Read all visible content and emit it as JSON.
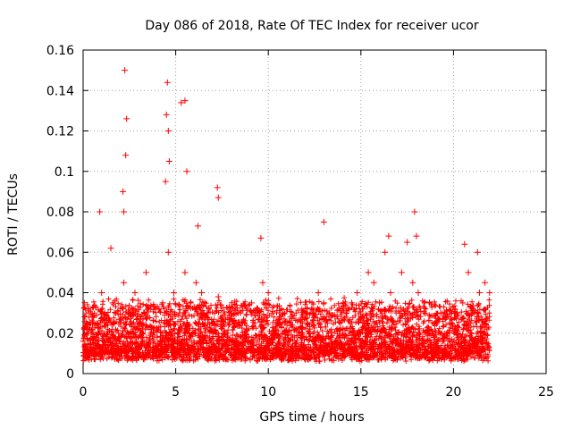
{
  "chart_data": {
    "type": "scatter",
    "title": "Day 086 of 2018, Rate Of TEC Index for receiver ucor",
    "xlabel": "GPS time / hours",
    "ylabel": "ROTI / TECUs",
    "xlim": [
      0,
      25
    ],
    "ylim": [
      0,
      0.16
    ],
    "xticks": [
      "0",
      "5",
      "10",
      "15",
      "20",
      "25"
    ],
    "yticks": [
      "0",
      "0.02",
      "0.04",
      "0.06",
      "0.08",
      "0.1",
      "0.12",
      "0.14",
      "0.16"
    ],
    "grid": true,
    "marker": "+",
    "color": "#ff0000",
    "series": [
      {
        "x": [
          0.0,
          0.2,
          0.5,
          0.8,
          1.0,
          1.3,
          1.6,
          1.9,
          2.2,
          2.5,
          2.8,
          3.1,
          3.4,
          3.7,
          4.0,
          4.3,
          4.6,
          4.9,
          5.2,
          5.5,
          5.8,
          6.1,
          6.4,
          6.7,
          7.0,
          7.3,
          7.6,
          7.9,
          8.2,
          8.5,
          8.8,
          9.1,
          9.4,
          9.7,
          10.0,
          10.3,
          10.6,
          10.9,
          11.2,
          11.5,
          11.8,
          12.1,
          12.4,
          12.7,
          13.0,
          13.3,
          13.6,
          13.9,
          14.2,
          14.5,
          14.8,
          15.1,
          15.4,
          15.7,
          16.0,
          16.3,
          16.6,
          16.9,
          17.2,
          17.5,
          17.8,
          18.1,
          18.4,
          18.7,
          19.0,
          19.3,
          19.6,
          19.9,
          20.2,
          20.5,
          20.8,
          21.1,
          21.4,
          21.7,
          21.95,
          2.25,
          2.35,
          2.3,
          4.55,
          4.5,
          4.6,
          4.65,
          4.45,
          5.3,
          5.5,
          5.6,
          2.2,
          2.15,
          7.25,
          7.3,
          9.6,
          13.0,
          17.9,
          18.0,
          20.6,
          21.3,
          1.5,
          0.9,
          6.2,
          16.5
        ],
        "y": [
          0.016,
          0.022,
          0.028,
          0.02,
          0.04,
          0.025,
          0.035,
          0.02,
          0.045,
          0.03,
          0.04,
          0.028,
          0.05,
          0.022,
          0.018,
          0.035,
          0.06,
          0.04,
          0.03,
          0.05,
          0.035,
          0.045,
          0.04,
          0.03,
          0.025,
          0.038,
          0.02,
          0.033,
          0.025,
          0.03,
          0.022,
          0.035,
          0.03,
          0.045,
          0.04,
          0.028,
          0.03,
          0.025,
          0.028,
          0.022,
          0.02,
          0.025,
          0.03,
          0.04,
          0.035,
          0.03,
          0.028,
          0.022,
          0.03,
          0.035,
          0.04,
          0.025,
          0.05,
          0.045,
          0.035,
          0.06,
          0.04,
          0.03,
          0.05,
          0.065,
          0.045,
          0.04,
          0.03,
          0.035,
          0.025,
          0.03,
          0.028,
          0.025,
          0.03,
          0.035,
          0.05,
          0.03,
          0.04,
          0.045,
          0.04,
          0.15,
          0.126,
          0.108,
          0.144,
          0.128,
          0.12,
          0.105,
          0.095,
          0.134,
          0.135,
          0.1,
          0.08,
          0.09,
          0.092,
          0.087,
          0.067,
          0.075,
          0.08,
          0.068,
          0.064,
          0.06,
          0.062,
          0.08,
          0.073,
          0.068
        ]
      }
    ]
  }
}
